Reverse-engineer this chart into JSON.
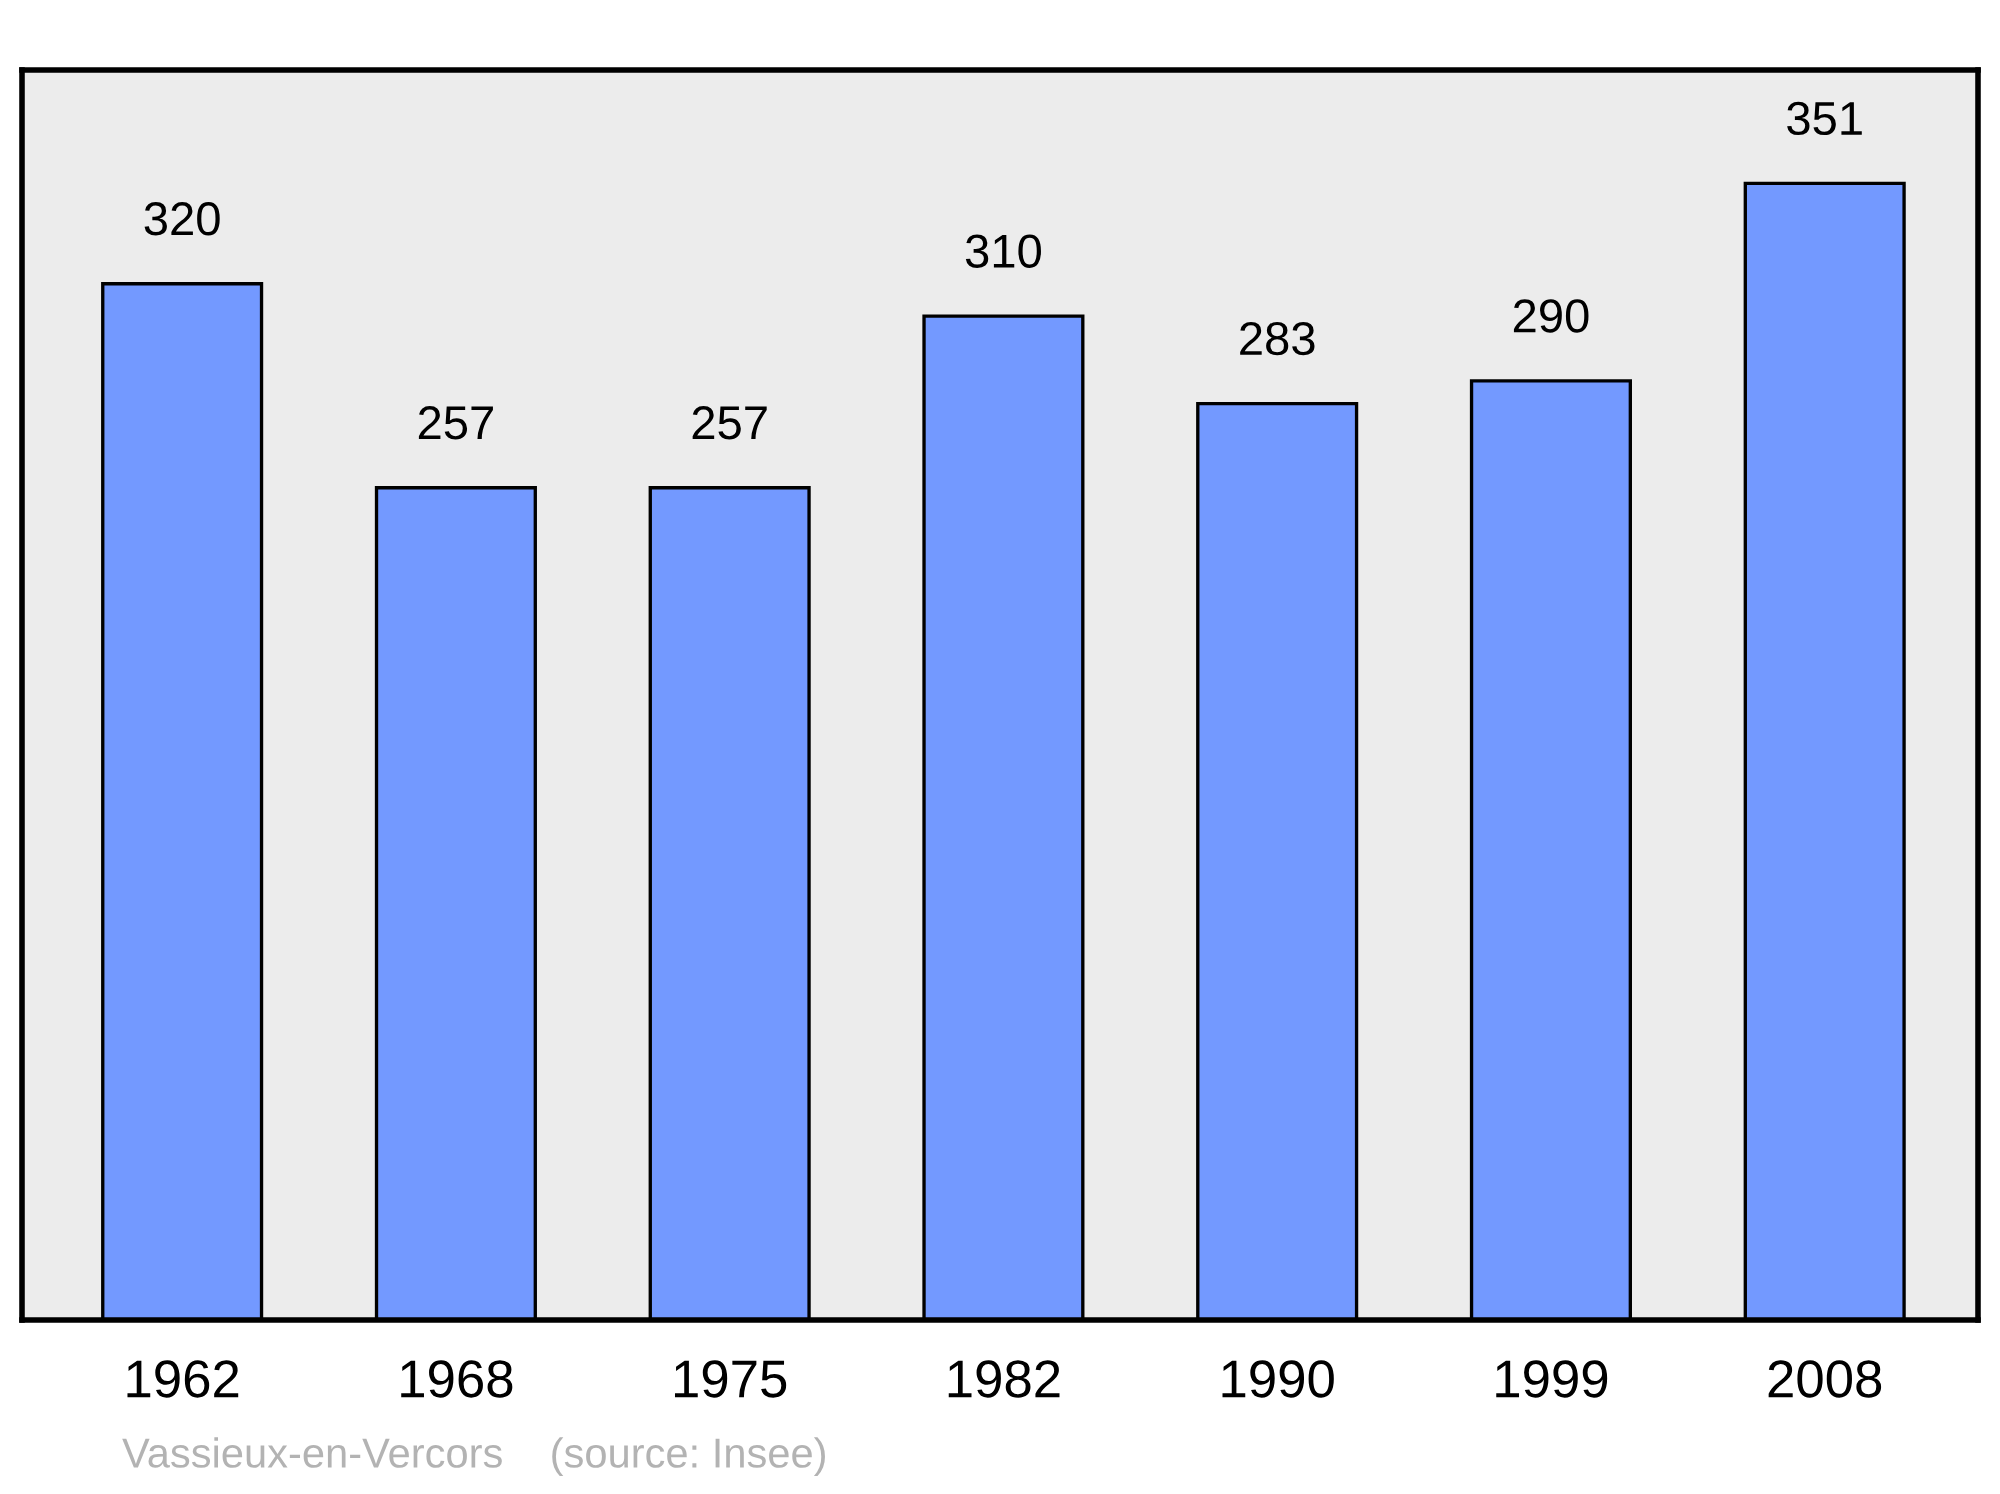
{
  "chart_data": {
    "type": "bar",
    "categories": [
      "1962",
      "1968",
      "1975",
      "1982",
      "1990",
      "1999",
      "2008"
    ],
    "values": [
      320,
      257,
      257,
      310,
      283,
      290,
      351
    ],
    "color": "#7399ff",
    "ylim": [
      0,
      386
    ],
    "tick_labels": "x",
    "data_labels": true,
    "grid": false,
    "legend": false,
    "annotations": [
      "Vassieux-en-Vercors    (source: Insee)"
    ]
  }
}
